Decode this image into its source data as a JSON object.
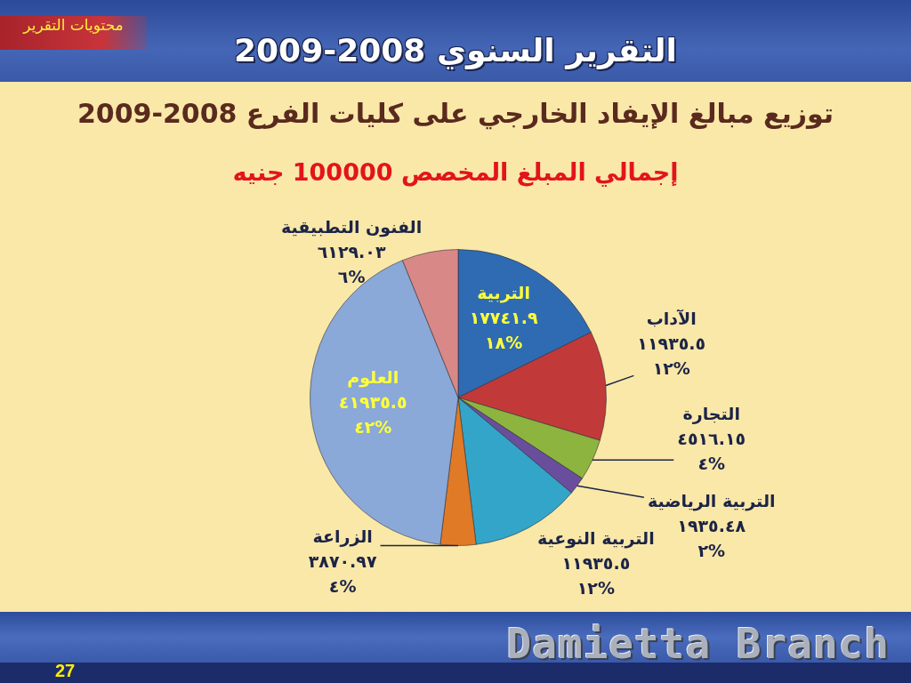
{
  "chart_data": {
    "type": "pie",
    "title": "توزيع مبالغ الإيفاد الخارجي على كليات الفرع 2008-2009",
    "subtitle": "إجمالي المبلغ المخصص 100000 جنيه",
    "categories": [
      "التربية",
      "الآداب",
      "التجارة",
      "التربية الرياضية",
      "التربية النوعية",
      "الزراعة",
      "العلوم",
      "الفنون التطبيقية"
    ],
    "values": [
      17741.9,
      11935.5,
      4516.15,
      1935.48,
      11935.5,
      3870.97,
      41935.5,
      6129.03
    ],
    "colors": [
      "#2f6bb3",
      "#c2393a",
      "#8cb43f",
      "#6a4e9e",
      "#33a5c8",
      "#e07a26",
      "#8aa8d8",
      "#d98888"
    ],
    "value_labels": [
      "١٧٧٤١.٩\n١٨%",
      "١١٩٣٥.٥\n١٢%",
      "٤٥١٦.١٥\n٤%",
      "١٩٣٥.٤٨\n٢%",
      "١١٩٣٥.٥\n١٢%",
      "٣٨٧٠.٩٧\n٤%",
      "٤١٩٣٥.٥\n٤٢%",
      "٦١٢٩.٠٣\n٦%"
    ],
    "annotations": [
      "التقرير السنوي 2008-2009",
      "محتويات التقرير",
      "Damietta Branch",
      "27"
    ]
  }
}
